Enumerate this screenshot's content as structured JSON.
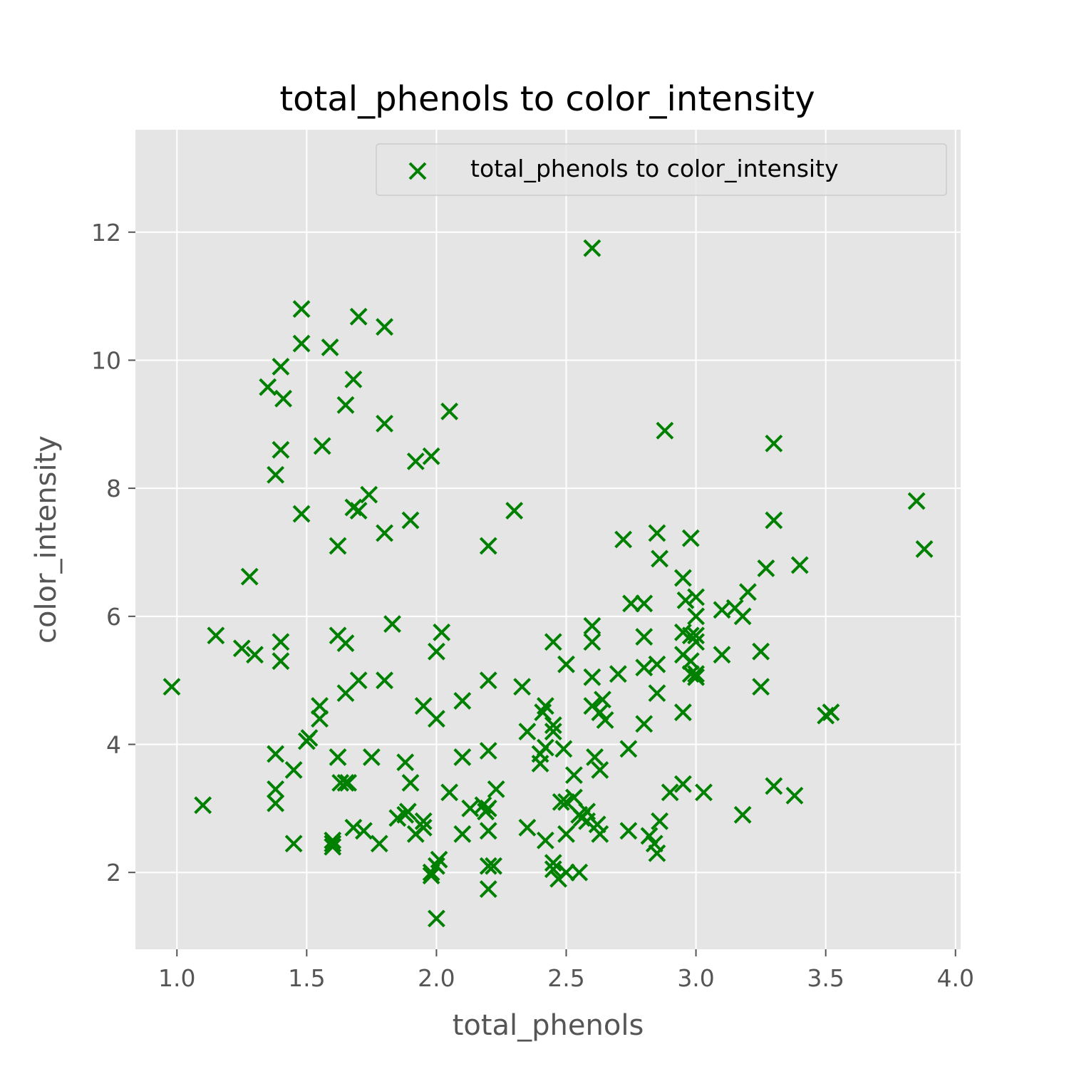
{
  "chart_data": {
    "type": "scatter",
    "title": "total_phenols to color_intensity",
    "xlabel": "total_phenols",
    "ylabel": "color_intensity",
    "xlim": [
      0.84,
      4.02
    ],
    "ylim": [
      0.8,
      13.6
    ],
    "xticks": [
      "1.0",
      "1.5",
      "2.0",
      "2.5",
      "3.0",
      "3.5",
      "4.0"
    ],
    "xtick_values": [
      1.0,
      1.5,
      2.0,
      2.5,
      3.0,
      3.5,
      4.0
    ],
    "yticks": [
      "2",
      "4",
      "6",
      "8",
      "10",
      "12"
    ],
    "ytick_values": [
      2,
      4,
      6,
      8,
      10,
      12
    ],
    "grid": true,
    "legend_position": "top-right",
    "marker": "x",
    "color": "#008000",
    "background": "#e5e5e5",
    "series": [
      {
        "name": "total_phenols to color_intensity",
        "points": [
          [
            0.98,
            4.9
          ],
          [
            1.1,
            3.05
          ],
          [
            1.15,
            5.7
          ],
          [
            1.25,
            5.5
          ],
          [
            1.28,
            6.62
          ],
          [
            1.3,
            5.4
          ],
          [
            1.35,
            9.58
          ],
          [
            1.38,
            8.21
          ],
          [
            1.38,
            3.85
          ],
          [
            1.38,
            3.3
          ],
          [
            1.38,
            3.08
          ],
          [
            1.4,
            9.9
          ],
          [
            1.4,
            8.6
          ],
          [
            1.4,
            5.6
          ],
          [
            1.4,
            5.3
          ],
          [
            1.41,
            9.4
          ],
          [
            1.45,
            3.6
          ],
          [
            1.45,
            2.45
          ],
          [
            1.48,
            10.8
          ],
          [
            1.48,
            10.26
          ],
          [
            1.48,
            7.6
          ],
          [
            1.5,
            4.05
          ],
          [
            1.51,
            4.1
          ],
          [
            1.55,
            4.6
          ],
          [
            1.55,
            4.4
          ],
          [
            1.56,
            8.66
          ],
          [
            1.59,
            10.2
          ],
          [
            1.6,
            2.5
          ],
          [
            1.6,
            2.45
          ],
          [
            1.6,
            2.4
          ],
          [
            1.62,
            7.1
          ],
          [
            1.62,
            5.7
          ],
          [
            1.62,
            3.8
          ],
          [
            1.63,
            3.4
          ],
          [
            1.65,
            9.3
          ],
          [
            1.65,
            5.58
          ],
          [
            1.65,
            4.8
          ],
          [
            1.65,
            3.4
          ],
          [
            1.66,
            3.4
          ],
          [
            1.68,
            9.7
          ],
          [
            1.68,
            7.7
          ],
          [
            1.68,
            2.7
          ],
          [
            1.7,
            10.68
          ],
          [
            1.7,
            7.65
          ],
          [
            1.7,
            5.0
          ],
          [
            1.72,
            2.65
          ],
          [
            1.74,
            7.9
          ],
          [
            1.75,
            3.8
          ],
          [
            1.78,
            2.45
          ],
          [
            1.8,
            10.52
          ],
          [
            1.8,
            9.01
          ],
          [
            1.8,
            7.3
          ],
          [
            1.8,
            5.0
          ],
          [
            1.83,
            5.88
          ],
          [
            1.85,
            2.85
          ],
          [
            1.88,
            3.72
          ],
          [
            1.88,
            2.9
          ],
          [
            1.89,
            2.95
          ],
          [
            1.9,
            7.5
          ],
          [
            1.9,
            3.4
          ],
          [
            1.92,
            8.42
          ],
          [
            1.92,
            2.6
          ],
          [
            1.95,
            4.6
          ],
          [
            1.95,
            2.8
          ],
          [
            1.95,
            2.7
          ],
          [
            1.98,
            8.5
          ],
          [
            1.98,
            2.0
          ],
          [
            1.98,
            1.95
          ],
          [
            2.0,
            5.45
          ],
          [
            2.0,
            4.4
          ],
          [
            2.0,
            2.1
          ],
          [
            2.0,
            1.28
          ],
          [
            2.01,
            2.2
          ],
          [
            2.02,
            5.75
          ],
          [
            2.05,
            9.2
          ],
          [
            2.05,
            3.25
          ],
          [
            2.1,
            4.68
          ],
          [
            2.1,
            3.8
          ],
          [
            2.1,
            2.6
          ],
          [
            2.13,
            3.0
          ],
          [
            2.18,
            3.05
          ],
          [
            2.19,
            2.95
          ],
          [
            2.2,
            7.1
          ],
          [
            2.2,
            5.0
          ],
          [
            2.2,
            3.9
          ],
          [
            2.2,
            3.0
          ],
          [
            2.2,
            2.65
          ],
          [
            2.2,
            2.1
          ],
          [
            2.2,
            1.74
          ],
          [
            2.22,
            2.1
          ],
          [
            2.23,
            3.3
          ],
          [
            2.3,
            7.65
          ],
          [
            2.33,
            4.9
          ],
          [
            2.35,
            4.2
          ],
          [
            2.35,
            2.7
          ],
          [
            2.4,
            3.85
          ],
          [
            2.4,
            3.7
          ],
          [
            2.41,
            4.5
          ],
          [
            2.42,
            4.6
          ],
          [
            2.42,
            3.95
          ],
          [
            2.42,
            2.5
          ],
          [
            2.45,
            5.6
          ],
          [
            2.45,
            4.3
          ],
          [
            2.45,
            4.2
          ],
          [
            2.45,
            2.15
          ],
          [
            2.45,
            2.05
          ],
          [
            2.47,
            1.9
          ],
          [
            2.48,
            3.1
          ],
          [
            2.49,
            3.93
          ],
          [
            2.5,
            5.25
          ],
          [
            2.5,
            3.1
          ],
          [
            2.5,
            2.6
          ],
          [
            2.5,
            2.0
          ],
          [
            2.53,
            3.52
          ],
          [
            2.53,
            3.17
          ],
          [
            2.55,
            2.9
          ],
          [
            2.55,
            2.0
          ],
          [
            2.56,
            2.85
          ],
          [
            2.58,
            2.95
          ],
          [
            2.58,
            2.8
          ],
          [
            2.6,
            11.75
          ],
          [
            2.6,
            5.85
          ],
          [
            2.6,
            5.6
          ],
          [
            2.6,
            5.05
          ],
          [
            2.6,
            4.6
          ],
          [
            2.61,
            3.8
          ],
          [
            2.62,
            2.75
          ],
          [
            2.63,
            4.5
          ],
          [
            2.63,
            3.6
          ],
          [
            2.63,
            2.6
          ],
          [
            2.64,
            4.7
          ],
          [
            2.65,
            4.38
          ],
          [
            2.7,
            5.1
          ],
          [
            2.72,
            7.2
          ],
          [
            2.74,
            3.93
          ],
          [
            2.74,
            2.65
          ],
          [
            2.75,
            6.2
          ],
          [
            2.8,
            6.2
          ],
          [
            2.8,
            5.68
          ],
          [
            2.8,
            5.2
          ],
          [
            2.8,
            4.32
          ],
          [
            2.82,
            2.57
          ],
          [
            2.84,
            2.45
          ],
          [
            2.85,
            7.3
          ],
          [
            2.85,
            5.25
          ],
          [
            2.85,
            4.8
          ],
          [
            2.85,
            2.3
          ],
          [
            2.86,
            6.9
          ],
          [
            2.86,
            2.8
          ],
          [
            2.88,
            8.9
          ],
          [
            2.9,
            3.25
          ],
          [
            2.95,
            6.6
          ],
          [
            2.95,
            5.75
          ],
          [
            2.95,
            5.4
          ],
          [
            2.95,
            4.5
          ],
          [
            2.95,
            3.38
          ],
          [
            2.96,
            6.25
          ],
          [
            2.98,
            7.22
          ],
          [
            2.98,
            5.7
          ],
          [
            2.98,
            5.3
          ],
          [
            2.98,
            5.1
          ],
          [
            3.0,
            6.3
          ],
          [
            3.0,
            6.0
          ],
          [
            3.0,
            5.7
          ],
          [
            3.0,
            5.6
          ],
          [
            3.0,
            5.1
          ],
          [
            3.0,
            5.05
          ],
          [
            3.03,
            3.25
          ],
          [
            3.1,
            6.1
          ],
          [
            3.1,
            5.4
          ],
          [
            3.15,
            6.13
          ],
          [
            3.18,
            6.0
          ],
          [
            3.18,
            2.9
          ],
          [
            3.2,
            6.38
          ],
          [
            3.25,
            5.45
          ],
          [
            3.25,
            4.9
          ],
          [
            3.27,
            6.75
          ],
          [
            3.3,
            8.7
          ],
          [
            3.3,
            7.5
          ],
          [
            3.3,
            3.35
          ],
          [
            3.38,
            3.2
          ],
          [
            3.4,
            6.8
          ],
          [
            3.5,
            4.45
          ],
          [
            3.52,
            4.5
          ],
          [
            3.85,
            7.8
          ],
          [
            3.88,
            7.05
          ]
        ]
      }
    ]
  }
}
